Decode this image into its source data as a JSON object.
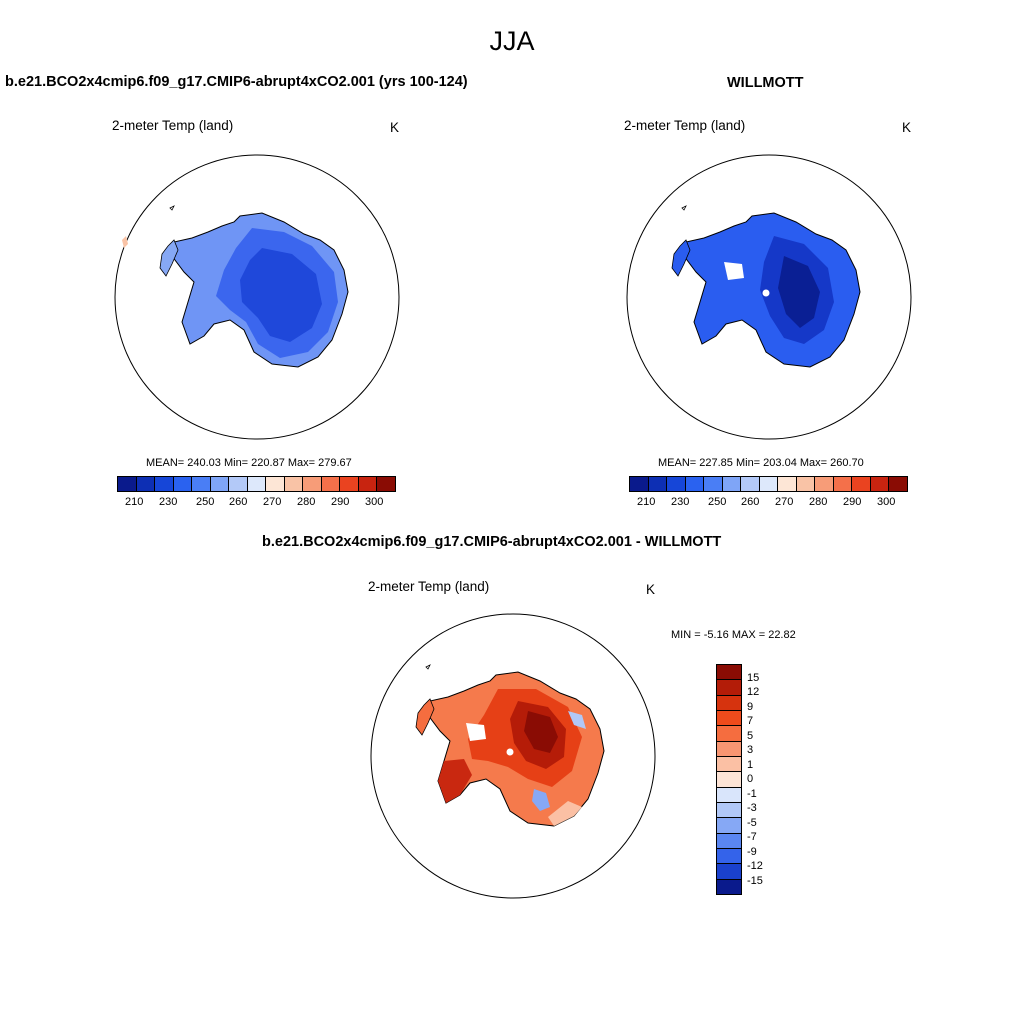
{
  "figure": {
    "season_title": "JJA"
  },
  "panel_model": {
    "title": "b.e21.BCO2x4cmip6.f09_g17.CMIP6-abrupt4xCO2.001 (yrs 100-124)",
    "variable": "2-meter Temp (land)",
    "units": "K",
    "stats": "MEAN= 240.03  Min= 220.87  Max= 279.67",
    "colorbar_ticks": [
      "210",
      "230",
      "250",
      "260",
      "270",
      "280",
      "290",
      "300"
    ]
  },
  "panel_obs": {
    "title": "WILLMOTT",
    "variable": "2-meter Temp (land)",
    "units": "K",
    "stats": "MEAN= 227.85  Min= 203.04  Max= 260.70",
    "colorbar_ticks": [
      "210",
      "230",
      "250",
      "260",
      "270",
      "280",
      "290",
      "300"
    ]
  },
  "panel_diff": {
    "title": "b.e21.BCO2x4cmip6.f09_g17.CMIP6-abrupt4xCO2.001 - WILLMOTT",
    "variable": "2-meter Temp (land)",
    "units": "K",
    "stats": "MIN =  -5.16 MAX =  22.82",
    "colorbar_ticks": [
      "15",
      "12",
      "9",
      "7",
      "5",
      "3",
      "1",
      "0",
      "-1",
      "-3",
      "-5",
      "-7",
      "-9",
      "-12",
      "-15"
    ]
  },
  "colors": {
    "abs_scale": [
      "#0a1a8c",
      "#0d2fb4",
      "#1646d8",
      "#2a62f0",
      "#4a7ef5",
      "#7fa5f7",
      "#b3c9f8",
      "#dde8fb",
      "#fde6d6",
      "#f9c3a6",
      "#f79c78",
      "#f4704a",
      "#ea4320",
      "#c82410",
      "#8a0c04"
    ],
    "diff_scale": [
      "#8a0c04",
      "#b31c08",
      "#d6330e",
      "#ee4b1c",
      "#f56d3f",
      "#f89672",
      "#fbc0a4",
      "#fde4d6",
      "#d9e5fb",
      "#b1c8f7",
      "#86a8f5",
      "#5a86f1",
      "#3463ea",
      "#1a41cd",
      "#0a1a8c"
    ]
  }
}
